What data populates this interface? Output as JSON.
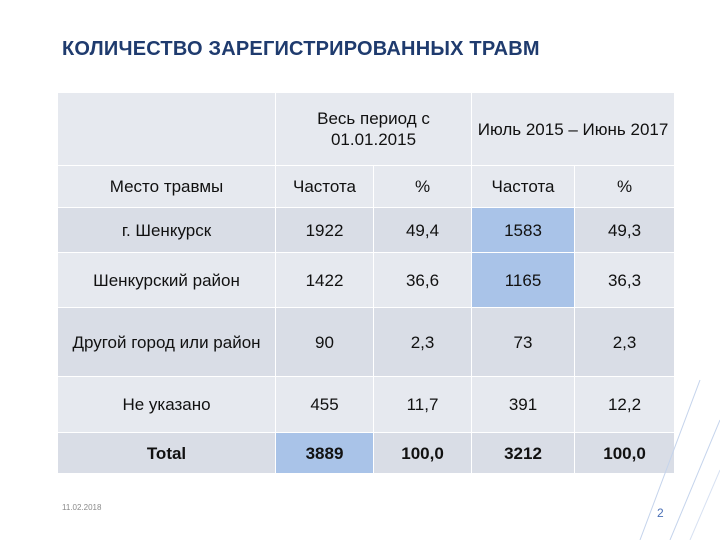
{
  "title": "КОЛИЧЕСТВО ЗАРЕГИСТРИРОВАННЫХ ТРАВМ",
  "table": {
    "group_headers": [
      "Весь период с 01.01.2015",
      "Июль 2015 – Июнь 2017"
    ],
    "columns": [
      "Место травмы",
      "Частота",
      "%",
      "Частота",
      "%"
    ],
    "rows": [
      {
        "place": "г. Шенкурск",
        "freq1": "1922",
        "pct1": "49,4",
        "freq2": "1583",
        "pct2": "49,3"
      },
      {
        "place": "Шенкурский район",
        "freq1": "1422",
        "pct1": "36,6",
        "freq2": "1165",
        "pct2": "36,3"
      },
      {
        "place": "Другой город или район",
        "freq1": "90",
        "pct1": "2,3",
        "freq2": "73",
        "pct2": "2,3"
      },
      {
        "place": "Не указано",
        "freq1": "455",
        "pct1": "11,7",
        "freq2": "391",
        "pct2": "12,2"
      },
      {
        "place": "Total",
        "freq1": "3889",
        "pct1": "100,0",
        "freq2": "3212",
        "pct2": "100,0"
      }
    ]
  },
  "footer": {
    "date": "11.02.2018",
    "page": "2"
  },
  "colors": {
    "title": "#1f3b6e",
    "highlight": "#a9c3e8",
    "cell_light": "#e6e9ef",
    "cell_dark": "#d9dde6"
  }
}
